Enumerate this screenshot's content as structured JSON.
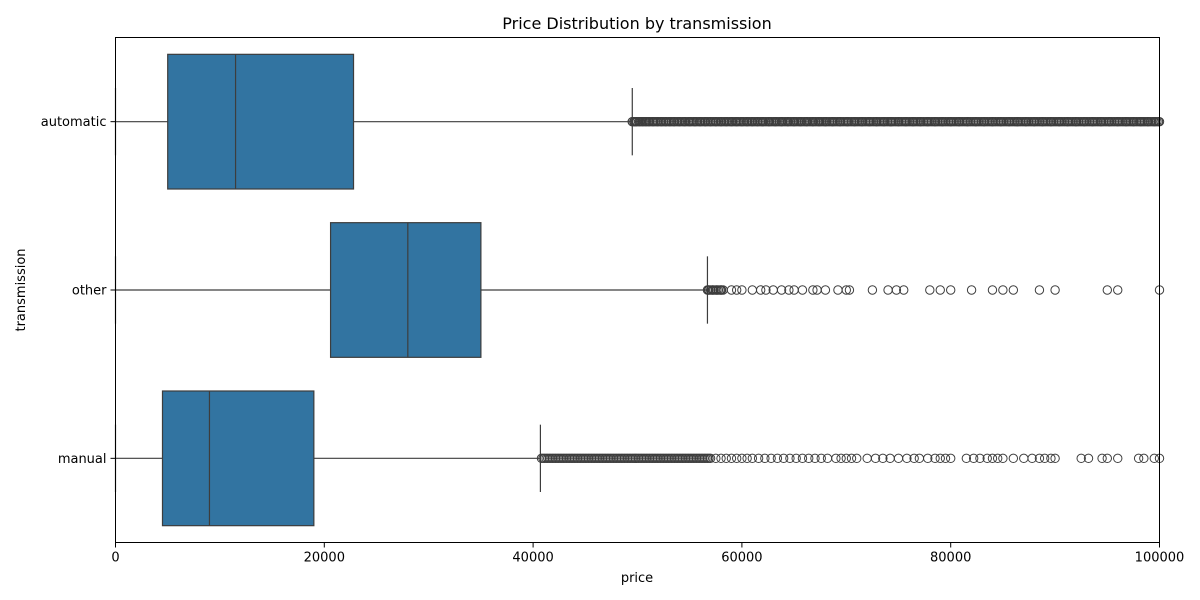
{
  "chart_data": {
    "type": "box",
    "orientation": "horizontal",
    "title": "Price Distribution by transmission",
    "xlabel": "price",
    "ylabel": "transmission",
    "xlim": [
      0,
      100000
    ],
    "xticks": [
      0,
      20000,
      40000,
      60000,
      80000,
      100000
    ],
    "xtick_labels": [
      "0",
      "20000",
      "40000",
      "60000",
      "80000",
      "100000"
    ],
    "grid": false,
    "box_color": "#3274a1",
    "edge_color": "#3d3d3d",
    "categories": [
      "automatic",
      "other",
      "manual"
    ],
    "boxes": [
      {
        "category": "automatic",
        "whisker_low": 0,
        "q1": 5000,
        "median": 11500,
        "q3": 22800,
        "whisker_high": 49500,
        "outlier_ranges": [
          [
            49500,
            100000
          ]
        ],
        "outliers": [
          49500,
          49700,
          49900,
          50200,
          50500,
          50800,
          51100,
          51500,
          51900,
          52300,
          52700,
          53100,
          53500,
          54000,
          54500,
          55000,
          55500,
          56000,
          56500,
          57000,
          57500,
          58000,
          58500,
          59000,
          59500,
          60000,
          60500,
          61000,
          61500,
          62000,
          62600,
          63200,
          63800,
          64400,
          65000,
          65600,
          66200,
          66800,
          67400,
          68000,
          68700,
          69400,
          70100,
          70800,
          71500,
          72200,
          72900,
          73600,
          74300,
          75000,
          75700,
          76400,
          77100,
          77800,
          78500,
          79200,
          80000,
          80800,
          81600,
          82400,
          83200,
          84000,
          84800,
          85600,
          86400,
          87200,
          88000,
          88800,
          89600,
          90400,
          91200,
          92000,
          92800,
          93600,
          94400,
          95200,
          96000,
          96800,
          97500,
          98200,
          98900,
          99500,
          100000
        ]
      },
      {
        "category": "other",
        "whisker_low": 0,
        "q1": 20600,
        "median": 28000,
        "q3": 35000,
        "whisker_high": 56700,
        "outlier_ranges": [
          [
            56700,
            58200
          ]
        ],
        "outliers": [
          56800,
          57200,
          57600,
          58000,
          59000,
          59500,
          60000,
          61000,
          61800,
          62300,
          63000,
          63800,
          64500,
          65000,
          65800,
          66800,
          67200,
          68000,
          69200,
          70000,
          70300,
          72500,
          74000,
          74800,
          75500,
          78000,
          79000,
          80000,
          82000,
          84000,
          85000,
          86000,
          88500,
          90000,
          95000,
          96000,
          100000
        ]
      },
      {
        "category": "manual",
        "whisker_low": 0,
        "q1": 4500,
        "median": 9000,
        "q3": 19000,
        "whisker_high": 40700,
        "outlier_ranges": [
          [
            40800,
            57000
          ]
        ],
        "outliers": [
          57500,
          58000,
          58500,
          59000,
          59500,
          60000,
          60500,
          61000,
          61600,
          62200,
          62800,
          63400,
          64000,
          64600,
          65200,
          65800,
          66400,
          67000,
          67600,
          68200,
          69000,
          69500,
          70000,
          70500,
          71000,
          72000,
          72800,
          73500,
          74200,
          75000,
          75800,
          76500,
          77000,
          77800,
          78500,
          79000,
          79500,
          80000,
          81500,
          82200,
          82800,
          83500,
          84000,
          84500,
          85000,
          86000,
          87000,
          87800,
          88500,
          89000,
          89600,
          90000,
          92500,
          93200,
          94500,
          95000,
          96000,
          98000,
          98500,
          99500,
          100000
        ]
      }
    ]
  }
}
